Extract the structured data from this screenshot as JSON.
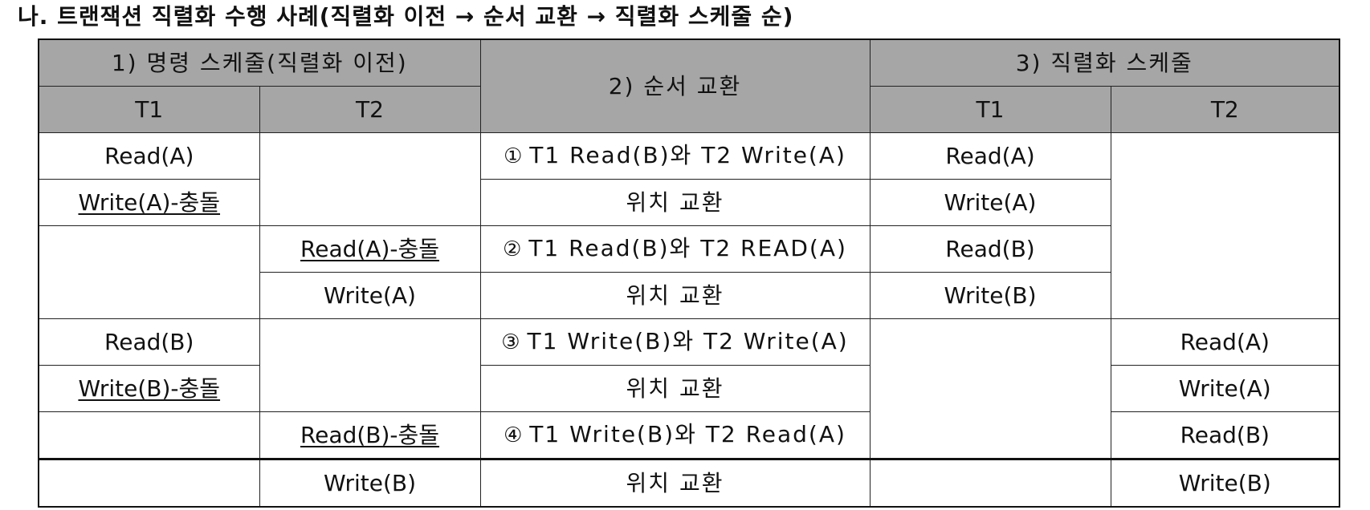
{
  "title": "나. 트랜잭션 직렬화 수행 사례(직렬화 이전 → 순서 교환 → 직렬화 스케줄 순)",
  "headers": {
    "col1": "1) 명령 스케줄(직렬화 이전)",
    "col2": "2) 순서 교환",
    "col3": "3) 직렬화 스케줄",
    "t1": "T1",
    "t2": "T2"
  },
  "before": {
    "t1": [
      "Read(A)",
      "Write(A)-충돌",
      "Read(B)",
      "Write(B)-충돌"
    ],
    "t2": [
      "Read(A)-충돌",
      "Write(A)",
      "Read(B)-충돌",
      "Write(B)"
    ]
  },
  "swaps": [
    {
      "num": "①",
      "line1": "T1 Read(B)와 T2 Write(A)",
      "line2": "위치 교환"
    },
    {
      "num": "②",
      "line1": "T1 Read(B)와 T2 READ(A)",
      "line2": "위치 교환"
    },
    {
      "num": "③",
      "line1": "T1 Write(B)와 T2 Write(A)",
      "line2": "위치 교환"
    },
    {
      "num": "④",
      "line1": "T1 Write(B)와 T2 Read(A)",
      "line2": "위치 교환"
    }
  ],
  "after": {
    "t1": [
      "Read(A)",
      "Write(A)",
      "Read(B)",
      "Write(B)"
    ],
    "t2": [
      "Read(A)",
      "Write(A)",
      "Read(B)",
      "Write(B)"
    ]
  }
}
